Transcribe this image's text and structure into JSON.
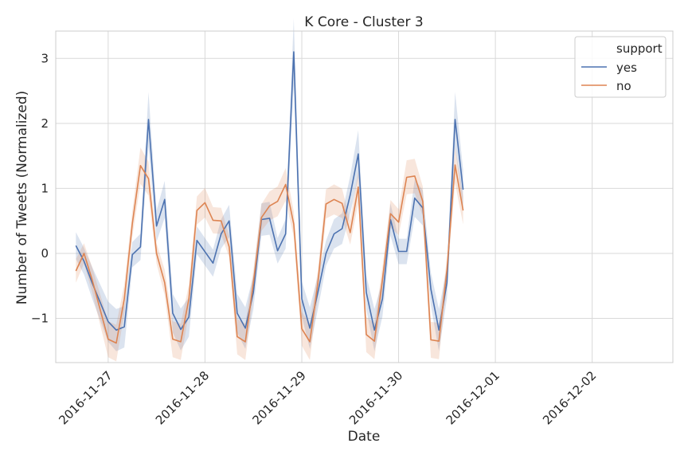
{
  "chart_data": {
    "type": "line",
    "title": "K Core - Cluster 3",
    "xlabel": "Date",
    "ylabel": "Number of Tweets (Normalized)",
    "x_ticks": [
      "2016-11-27",
      "2016-11-28",
      "2016-11-29",
      "2016-11-30",
      "2016-12-01",
      "2016-12-02"
    ],
    "y_ticks": [
      3,
      2,
      1,
      0,
      -1
    ],
    "y_tick_labels": [
      "3",
      "2",
      "1",
      "0",
      "−1"
    ],
    "xlim": [
      "2016-11-26 11:00",
      "2016-12-02 20:00"
    ],
    "ylim": [
      -1.68,
      3.42
    ],
    "grid": true,
    "legend": {
      "title": "support",
      "position": "top-right",
      "entries": [
        "yes",
        "no"
      ]
    },
    "series": [
      {
        "name": "yes",
        "color": "#4c72b0",
        "points": [
          [
            "2016-11-26 16:00",
            0.12
          ],
          [
            "2016-11-26 18:00",
            -0.12
          ],
          [
            "2016-11-26 20:00",
            -0.45
          ],
          [
            "2016-11-27 00:00",
            -1.05
          ],
          [
            "2016-11-27 02:00",
            -1.18
          ],
          [
            "2016-11-27 04:00",
            -1.13
          ],
          [
            "2016-11-27 06:00",
            -0.02
          ],
          [
            "2016-11-27 08:00",
            0.1
          ],
          [
            "2016-11-27 10:00",
            2.06
          ],
          [
            "2016-11-27 12:00",
            0.42
          ],
          [
            "2016-11-27 14:00",
            0.83
          ],
          [
            "2016-11-27 16:00",
            -0.92
          ],
          [
            "2016-11-27 18:00",
            -1.17
          ],
          [
            "2016-11-27 20:00",
            -0.98
          ],
          [
            "2016-11-27 22:00",
            0.2
          ],
          [
            "2016-11-28 02:00",
            -0.15
          ],
          [
            "2016-11-28 04:00",
            0.3
          ],
          [
            "2016-11-28 06:00",
            0.5
          ],
          [
            "2016-11-28 08:00",
            -0.92
          ],
          [
            "2016-11-28 10:00",
            -1.15
          ],
          [
            "2016-11-28 12:00",
            -0.6
          ],
          [
            "2016-11-28 14:00",
            0.52
          ],
          [
            "2016-11-28 16:00",
            0.54
          ],
          [
            "2016-11-28 18:00",
            0.04
          ],
          [
            "2016-11-28 20:00",
            0.3
          ],
          [
            "2016-11-28 22:00",
            3.1
          ],
          [
            "2016-11-29 00:00",
            -0.7
          ],
          [
            "2016-11-29 02:00",
            -1.15
          ],
          [
            "2016-11-29 04:00",
            -0.6
          ],
          [
            "2016-11-29 06:00",
            0.0
          ],
          [
            "2016-11-29 08:00",
            0.3
          ],
          [
            "2016-11-29 10:00",
            0.38
          ],
          [
            "2016-11-29 12:00",
            0.9
          ],
          [
            "2016-11-29 14:00",
            1.53
          ],
          [
            "2016-11-29 16:00",
            -0.6
          ],
          [
            "2016-11-29 18:00",
            -1.18
          ],
          [
            "2016-11-29 20:00",
            -0.7
          ],
          [
            "2016-11-29 22:00",
            0.52
          ],
          [
            "2016-11-30 00:00",
            0.03
          ],
          [
            "2016-11-30 02:00",
            0.03
          ],
          [
            "2016-11-30 04:00",
            0.85
          ],
          [
            "2016-11-30 06:00",
            0.7
          ],
          [
            "2016-11-30 08:00",
            -0.55
          ],
          [
            "2016-11-30 10:00",
            -1.18
          ],
          [
            "2016-11-30 12:00",
            -0.45
          ],
          [
            "2016-11-30 14:00",
            2.06
          ],
          [
            "2016-11-30 16:00",
            0.98
          ]
        ]
      },
      {
        "name": "no",
        "color": "#dd8452",
        "points": [
          [
            "2016-11-26 16:00",
            -0.27
          ],
          [
            "2016-11-26 18:00",
            0.0
          ],
          [
            "2016-11-26 20:00",
            -0.4
          ],
          [
            "2016-11-27 00:00",
            -1.32
          ],
          [
            "2016-11-27 02:00",
            -1.38
          ],
          [
            "2016-11-27 04:00",
            -0.7
          ],
          [
            "2016-11-27 06:00",
            0.46
          ],
          [
            "2016-11-27 08:00",
            1.35
          ],
          [
            "2016-11-27 10:00",
            1.15
          ],
          [
            "2016-11-27 12:00",
            0.0
          ],
          [
            "2016-11-27 14:00",
            -0.45
          ],
          [
            "2016-11-27 16:00",
            -1.32
          ],
          [
            "2016-11-27 18:00",
            -1.36
          ],
          [
            "2016-11-27 20:00",
            -0.7
          ],
          [
            "2016-11-27 22:00",
            0.66
          ],
          [
            "2016-11-28 00:00",
            0.78
          ],
          [
            "2016-11-28 02:00",
            0.51
          ],
          [
            "2016-11-28 04:00",
            0.5
          ],
          [
            "2016-11-28 06:00",
            0.1
          ],
          [
            "2016-11-28 08:00",
            -1.28
          ],
          [
            "2016-11-28 10:00",
            -1.36
          ],
          [
            "2016-11-28 12:00",
            -0.45
          ],
          [
            "2016-11-28 14:00",
            0.55
          ],
          [
            "2016-11-28 16:00",
            0.73
          ],
          [
            "2016-11-28 18:00",
            0.8
          ],
          [
            "2016-11-28 20:00",
            1.06
          ],
          [
            "2016-11-28 22:00",
            0.45
          ],
          [
            "2016-11-29 00:00",
            -1.16
          ],
          [
            "2016-11-29 02:00",
            -1.36
          ],
          [
            "2016-11-29 04:00",
            -0.45
          ],
          [
            "2016-11-29 06:00",
            0.76
          ],
          [
            "2016-11-29 08:00",
            0.83
          ],
          [
            "2016-11-29 10:00",
            0.77
          ],
          [
            "2016-11-29 12:00",
            0.32
          ],
          [
            "2016-11-29 14:00",
            1.02
          ],
          [
            "2016-11-29 16:00",
            -1.25
          ],
          [
            "2016-11-29 18:00",
            -1.35
          ],
          [
            "2016-11-29 20:00",
            -0.4
          ],
          [
            "2016-11-29 22:00",
            0.61
          ],
          [
            "2016-11-30 00:00",
            0.48
          ],
          [
            "2016-11-30 02:00",
            1.17
          ],
          [
            "2016-11-30 04:00",
            1.19
          ],
          [
            "2016-11-30 06:00",
            0.8
          ],
          [
            "2016-11-30 08:00",
            -1.33
          ],
          [
            "2016-11-30 10:00",
            -1.35
          ],
          [
            "2016-11-30 12:00",
            -0.25
          ],
          [
            "2016-11-30 14:00",
            1.36
          ],
          [
            "2016-11-30 16:00",
            0.66
          ]
        ]
      }
    ]
  }
}
